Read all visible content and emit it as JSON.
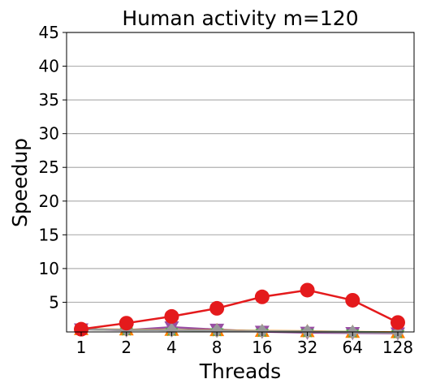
{
  "chart_data": {
    "type": "line",
    "title": "Human activity m=120",
    "xlabel": "Threads",
    "ylabel": "Speedup",
    "categories": [
      "1",
      "2",
      "4",
      "8",
      "16",
      "32",
      "64",
      "128"
    ],
    "ylim": [
      0.6,
      45
    ],
    "yticks": [
      5,
      10,
      15,
      20,
      25,
      30,
      35,
      40,
      45
    ],
    "grid": "horizontal",
    "series": [
      {
        "values": [
          1.0,
          0.85,
          1.3,
          0.95,
          0.65,
          0.5,
          0.45,
          0.4
        ],
        "color": "#984ea3",
        "marker": "triangle-down"
      },
      {
        "values": [
          1.0,
          0.95,
          0.9,
          0.85,
          0.75,
          0.7,
          0.6,
          0.55
        ],
        "color": "#ff7f00",
        "marker": "triangle-up"
      },
      {
        "values": [
          1.0,
          0.9,
          0.85,
          0.8,
          0.7,
          0.65,
          0.6,
          0.5
        ],
        "color": "#4daf4a",
        "marker": "star"
      },
      {
        "values": [
          1.0,
          0.9,
          0.85,
          0.8,
          0.7,
          0.65,
          0.55,
          0.5
        ],
        "color": "#999999",
        "marker": "diamond"
      },
      {
        "values": [
          1.0,
          1.9,
          2.9,
          4.1,
          5.8,
          6.8,
          5.3,
          2.0
        ],
        "color": "#e41a1c",
        "marker": "circle"
      }
    ]
  }
}
